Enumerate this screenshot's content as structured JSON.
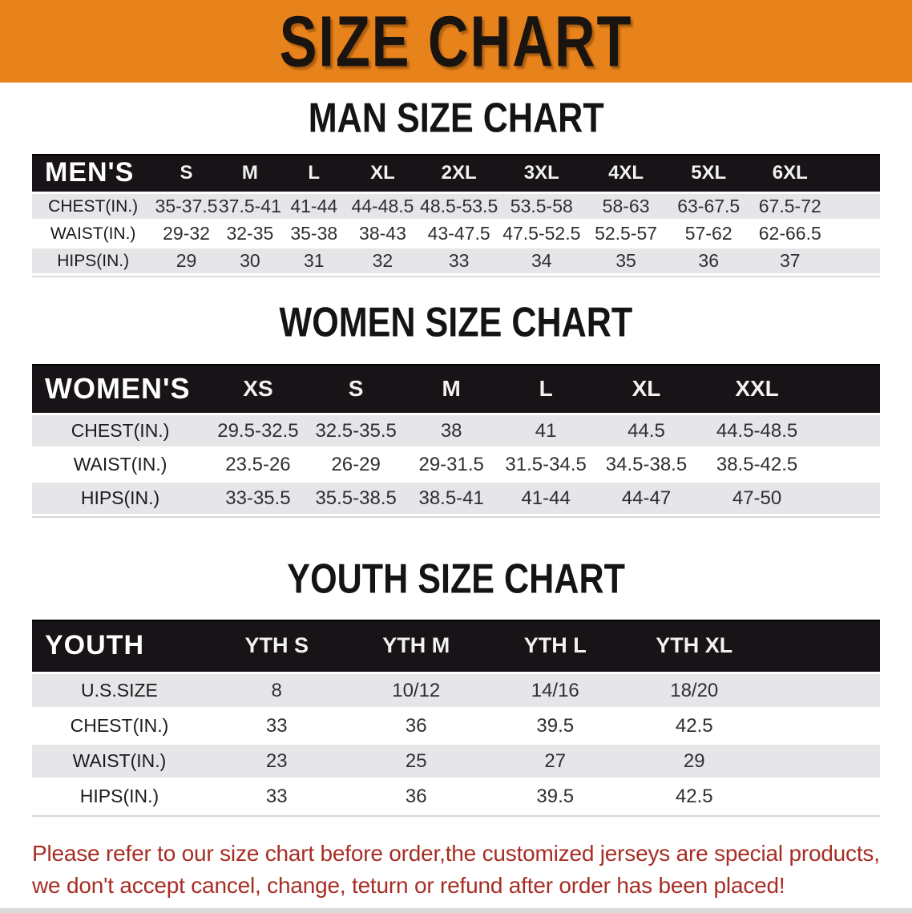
{
  "banner": {
    "title": "SIZE CHART",
    "bg_color": "#e8831c"
  },
  "sections": [
    {
      "id": "men",
      "title": "MAN SIZE CHART",
      "corner_label": "MEN'S",
      "sizes": [
        "S",
        "M",
        "L",
        "XL",
        "2XL",
        "3XL",
        "4XL",
        "5XL",
        "6XL"
      ],
      "rows": [
        {
          "label": "CHEST(IN.)",
          "values": [
            "35-37.5",
            "37.5-41",
            "41-44",
            "44-48.5",
            "48.5-53.5",
            "53.5-58",
            "58-63",
            "63-67.5",
            "67.5-72"
          ]
        },
        {
          "label": "WAIST(IN.)",
          "values": [
            "29-32",
            "32-35",
            "35-38",
            "38-43",
            "43-47.5",
            "47.5-52.5",
            "52.5-57",
            "57-62",
            "62-66.5"
          ]
        },
        {
          "label": "HIPS(IN.)",
          "values": [
            "29",
            "30",
            "31",
            "32",
            "33",
            "34",
            "35",
            "36",
            "37"
          ]
        }
      ]
    },
    {
      "id": "women",
      "title": "WOMEN SIZE CHART",
      "corner_label": "WOMEN'S",
      "sizes": [
        "XS",
        "S",
        "M",
        "L",
        "XL",
        "XXL"
      ],
      "rows": [
        {
          "label": "CHEST(IN.)",
          "values": [
            "29.5-32.5",
            "32.5-35.5",
            "38",
            "41",
            "44.5",
            "44.5-48.5"
          ]
        },
        {
          "label": "WAIST(IN.)",
          "values": [
            "23.5-26",
            "26-29",
            "29-31.5",
            "31.5-34.5",
            "34.5-38.5",
            "38.5-42.5"
          ]
        },
        {
          "label": "HIPS(IN.)",
          "values": [
            "33-35.5",
            "35.5-38.5",
            "38.5-41",
            "41-44",
            "44-47",
            "47-50"
          ]
        }
      ]
    },
    {
      "id": "youth",
      "title": "YOUTH SIZE CHART",
      "corner_label": "YOUTH",
      "sizes": [
        "YTH S",
        "YTH M",
        "YTH L",
        "YTH XL"
      ],
      "rows": [
        {
          "label": "U.S.SIZE",
          "values": [
            "8",
            "10/12",
            "14/16",
            "18/20"
          ]
        },
        {
          "label": "CHEST(IN.)",
          "values": [
            "33",
            "36",
            "39.5",
            "42.5"
          ]
        },
        {
          "label": "WAIST(IN.)",
          "values": [
            "23",
            "25",
            "27",
            "29"
          ]
        },
        {
          "label": "HIPS(IN.)",
          "values": [
            "33",
            "36",
            "39.5",
            "42.5"
          ]
        }
      ]
    }
  ],
  "footer": {
    "line1": "Please refer to our size chart before order,the customized jerseys are special products,",
    "line2": "we don't accept cancel, change, teturn or refund after order has been placed!",
    "text_color": "#a62e24"
  },
  "colors": {
    "banner_orange": "#e8831c",
    "table_header_black": "#171317",
    "row_gray": "#e6e5e7",
    "notice_red": "#a62e24"
  }
}
